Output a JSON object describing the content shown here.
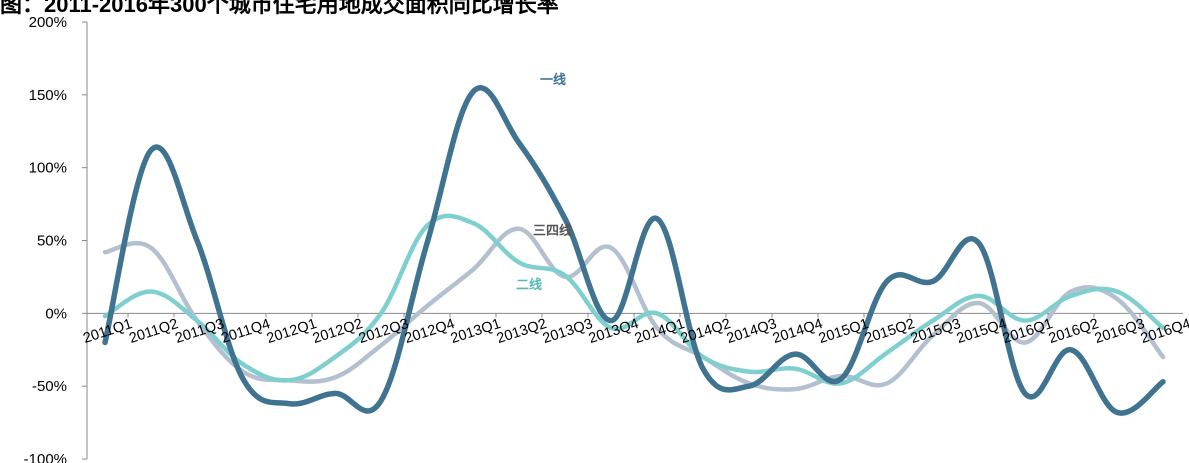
{
  "chart_data": {
    "type": "line",
    "title": "图：2011-2016年300个城市住宅用地成交面积同比增长率",
    "xlabel": "",
    "ylabel": "",
    "ylim": [
      -100,
      200
    ],
    "yticks": [
      "200%",
      "150%",
      "100%",
      "50%",
      "0%",
      "-50%",
      "-100%"
    ],
    "yticks_values": [
      200,
      150,
      100,
      50,
      0,
      -50,
      -100
    ],
    "grid": false,
    "categories": [
      "2011Q1",
      "2011Q2",
      "2011Q3",
      "2011Q4",
      "2012Q1",
      "2012Q2",
      "2012Q3",
      "2012Q4",
      "2013Q1",
      "2013Q2",
      "2013Q3",
      "2013Q4",
      "2014Q1",
      "2014Q2",
      "2014Q3",
      "2014Q4",
      "2015Q1",
      "2015Q2",
      "2015Q3",
      "2015Q4",
      "2016Q1",
      "2016Q2",
      "2016Q3",
      "2016Q4"
    ],
    "series": [
      {
        "name": "一线",
        "color": "#3f7390",
        "values": [
          -20,
          112,
          50,
          -45,
          -62,
          -55,
          -60,
          48,
          152,
          117,
          65,
          -5,
          65,
          -38,
          -50,
          -28,
          -45,
          22,
          22,
          48,
          -55,
          -25,
          -68,
          -47
        ]
      },
      {
        "name": "二线",
        "color": "#7fcfcf",
        "values": [
          -2,
          15,
          -5,
          -35,
          -46,
          -30,
          0,
          60,
          62,
          35,
          26,
          -10,
          0,
          -30,
          -40,
          -38,
          -48,
          -27,
          -5,
          12,
          -5,
          12,
          15,
          -10
        ]
      },
      {
        "name": "三四线",
        "color": "#b4c0cf",
        "values": [
          42,
          45,
          -5,
          -40,
          -46,
          -44,
          -22,
          5,
          30,
          58,
          25,
          45,
          -10,
          -30,
          -48,
          -52,
          -43,
          -48,
          -15,
          7,
          -20,
          15,
          10,
          -30
        ]
      }
    ],
    "legend": "inline-labels"
  }
}
